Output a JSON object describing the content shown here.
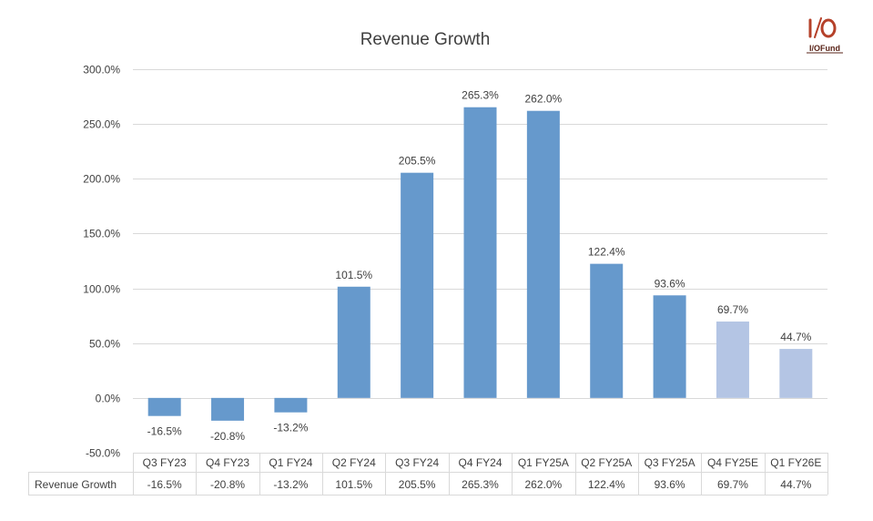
{
  "logo": {
    "text": "I/OFund",
    "color": "#b5412a"
  },
  "chart_data": {
    "type": "bar",
    "title": "Revenue Growth",
    "xlabel": "",
    "ylabel": "",
    "ylim": [
      -50,
      300
    ],
    "ytick_values": [
      -50,
      0,
      50,
      100,
      150,
      200,
      250,
      300
    ],
    "ytick_labels": [
      "-50.0%",
      "0.0%",
      "50.0%",
      "100.0%",
      "150.0%",
      "200.0%",
      "250.0%",
      "300.0%"
    ],
    "grid": true,
    "categories": [
      "Q3 FY23",
      "Q4 FY23",
      "Q1 FY24",
      "Q2 FY24",
      "Q3 FY24",
      "Q4 FY24",
      "Q1 FY25A",
      "Q2 FY25A",
      "Q3 FY25A",
      "Q4 FY25E",
      "Q1 FY26E"
    ],
    "series": [
      {
        "name": "Revenue Growth",
        "values": [
          -16.5,
          -20.8,
          -13.2,
          101.5,
          205.5,
          265.3,
          262.0,
          122.4,
          93.6,
          69.7,
          44.7
        ],
        "labels": [
          "-16.5%",
          "-20.8%",
          "-13.2%",
          "101.5%",
          "205.5%",
          "265.3%",
          "262.0%",
          "122.4%",
          "93.6%",
          "69.7%",
          "44.7%"
        ],
        "colors": [
          "#6699cc",
          "#6699cc",
          "#6699cc",
          "#6699cc",
          "#6699cc",
          "#6699cc",
          "#6699cc",
          "#6699cc",
          "#6699cc",
          "#b4c5e4",
          "#b4c5e4"
        ]
      }
    ],
    "data_table": {
      "row_header": "Revenue Growth",
      "cells": [
        "-16.5%",
        "-20.8%",
        "-13.2%",
        "101.5%",
        "205.5%",
        "265.3%",
        "262.0%",
        "122.4%",
        "93.6%",
        "69.7%",
        "44.7%"
      ]
    },
    "colors": {
      "actual": "#6699cc",
      "estimate": "#b4c5e4",
      "grid": "#d9d9d9",
      "text": "#404040"
    }
  }
}
